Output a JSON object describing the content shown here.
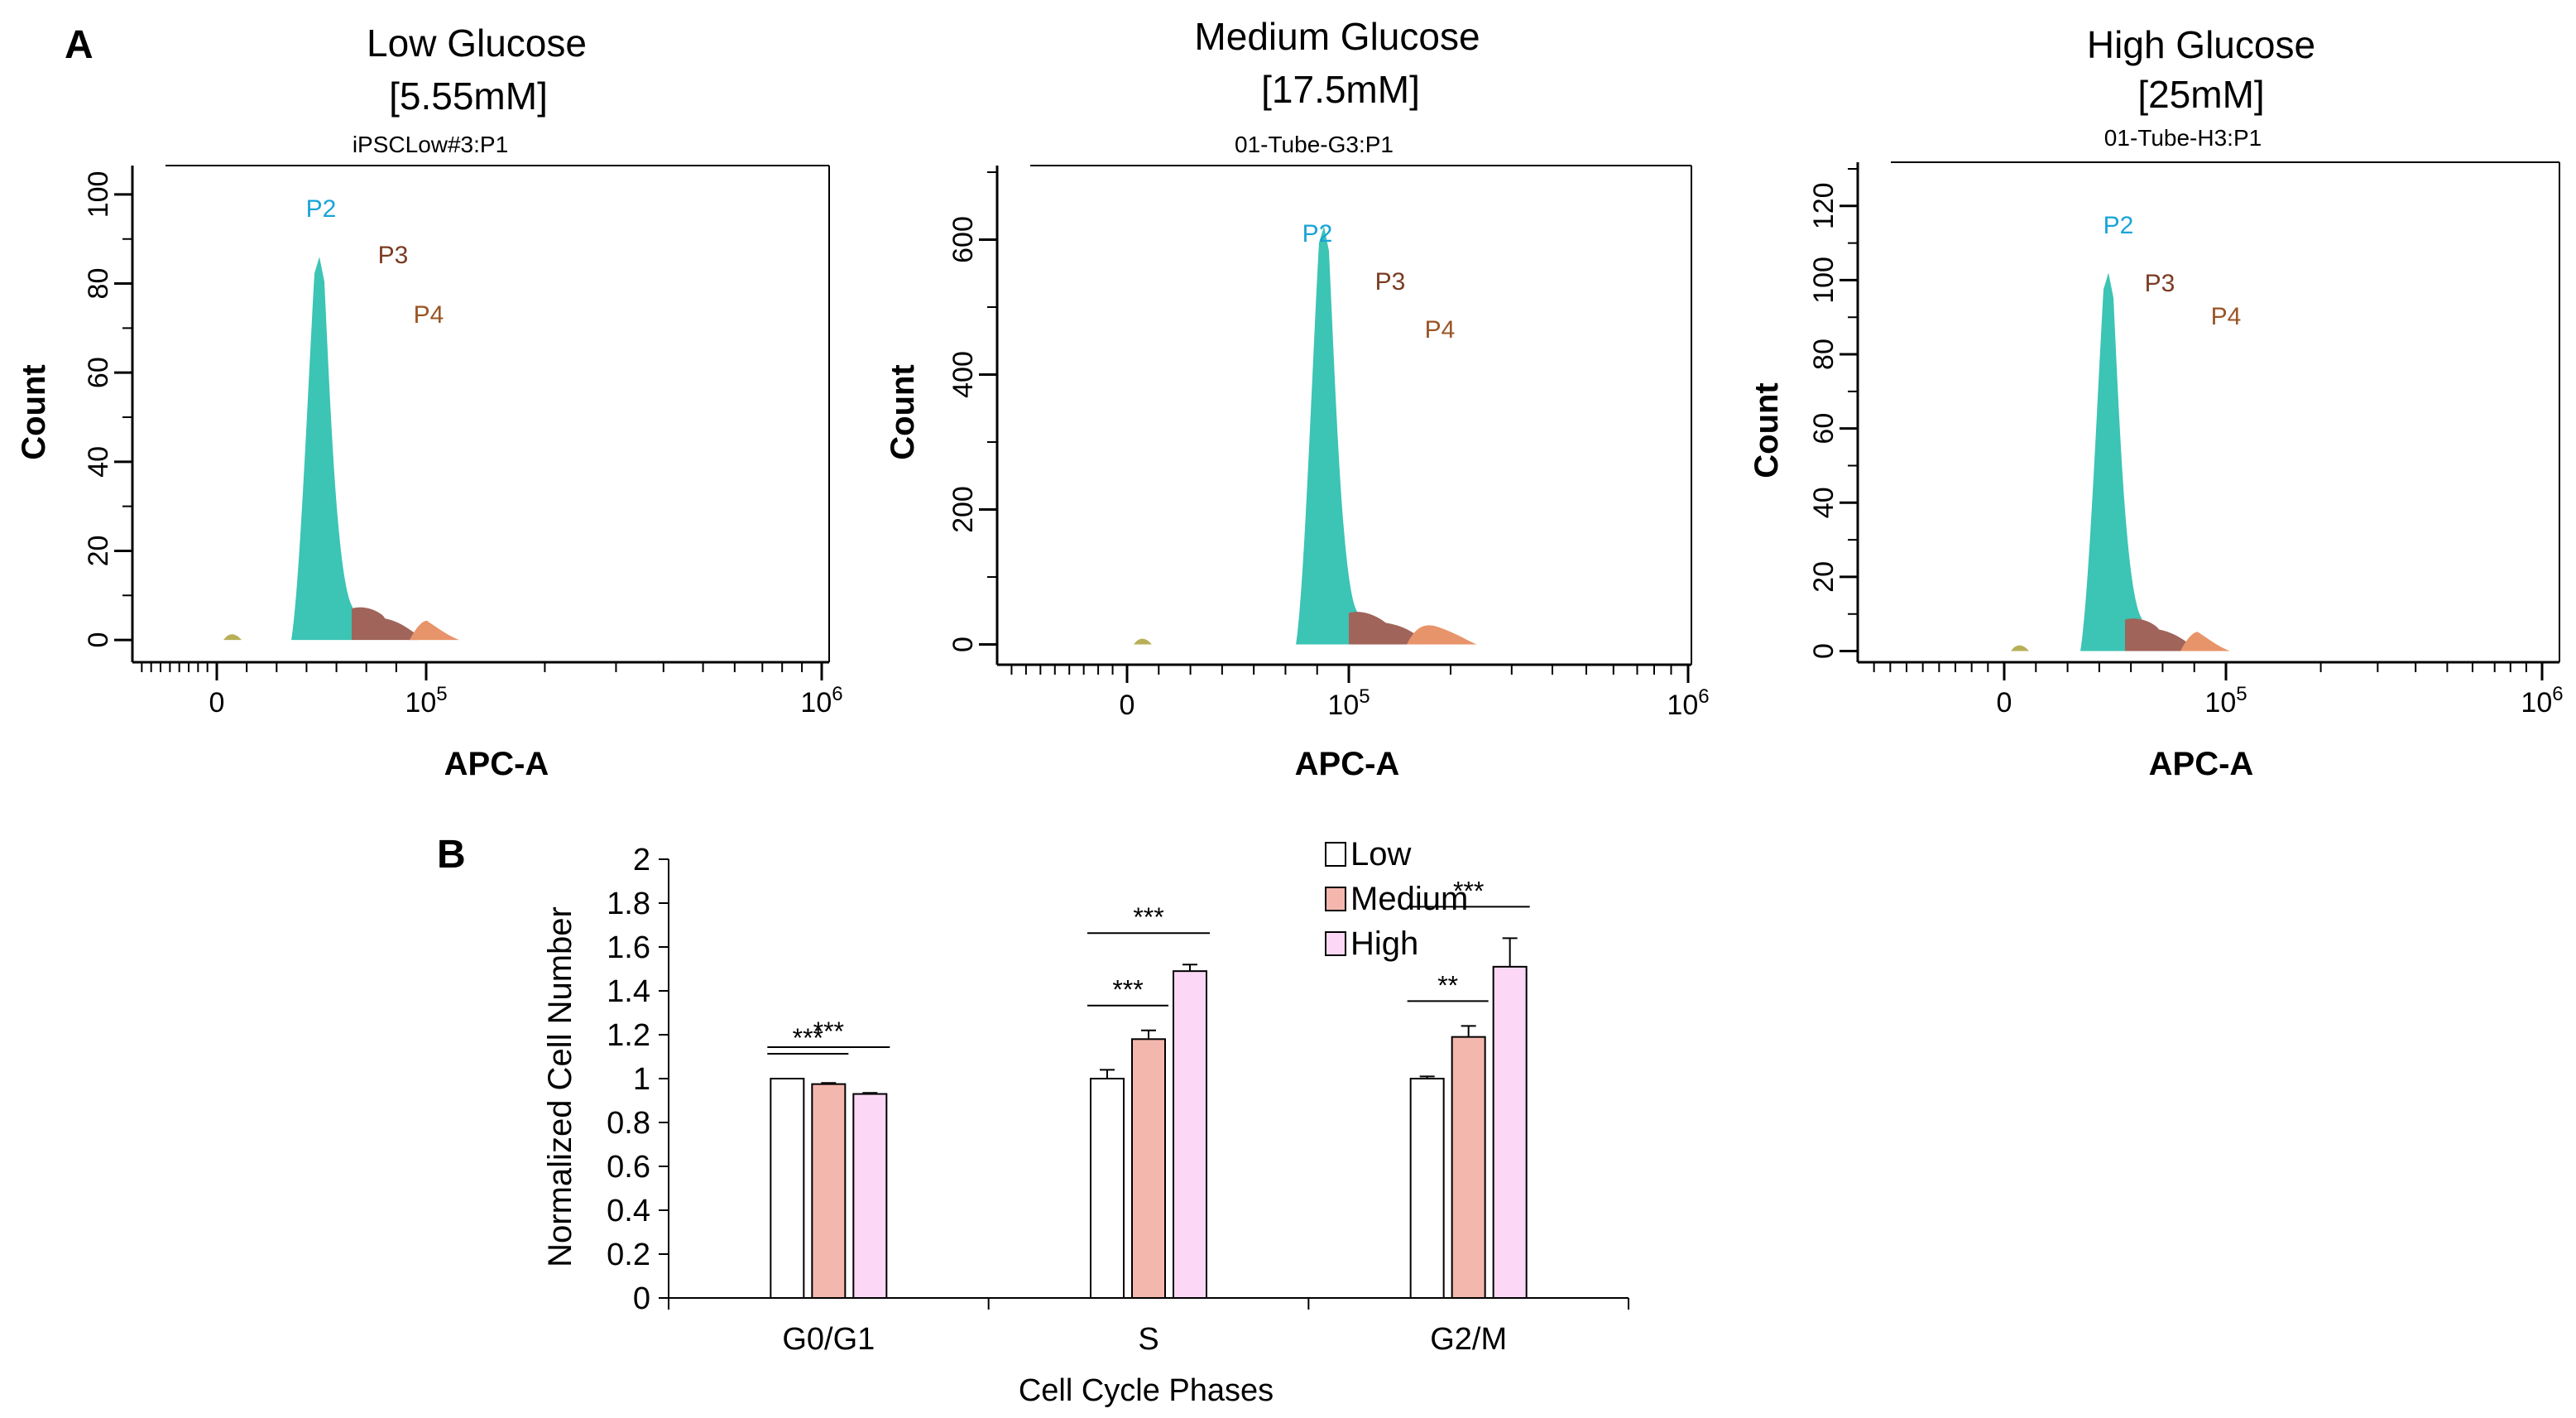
{
  "panel_a": {
    "letter": "A",
    "plots": [
      {
        "title_line1": "Low Glucose",
        "title_line2": "[5.55mM]",
        "subtitle": "iPSCLow#3:P1",
        "ylabel": "Count",
        "xlabel": "APC-A",
        "gates": [
          "P2",
          "P3",
          "P4"
        ]
      },
      {
        "title_line1": "Medium Glucose",
        "title_line2": "[17.5mM]",
        "subtitle": "01-Tube-G3:P1",
        "ylabel": "Count",
        "xlabel": "APC-A",
        "gates": [
          "P2",
          "P3",
          "P4"
        ]
      },
      {
        "title_line1": "High Glucose",
        "title_line2": "[25mM]",
        "subtitle": "01-Tube-H3:P1",
        "ylabel": "Count",
        "xlabel": "APC-A",
        "gates": [
          "P2",
          "P3",
          "P4"
        ]
      }
    ]
  },
  "panel_b": {
    "letter": "B"
  },
  "colors": {
    "p2_fill": "#3cc4b4",
    "p3_fill": "#a0645a",
    "p4_fill": "#e8946a",
    "debris_fill": "#b8b058",
    "p2_text": "#19a4d6",
    "p3_text": "#7a3c22",
    "p4_text": "#9a5424",
    "low_bar": "#ffffff",
    "medium_bar": "#f4b7ae",
    "high_bar": "#fcd8f6"
  },
  "chart_data": [
    {
      "type": "area",
      "title": "Low Glucose [5.55mM]",
      "subtitle": "iPSCLow#3:P1",
      "xlabel": "APC-A",
      "ylabel": "Count",
      "x_scale": "biexponential",
      "x_ticks": [
        {
          "value": 0,
          "label": "0"
        },
        {
          "value": 100000,
          "label": "10",
          "sup": "5"
        },
        {
          "value": 1000000,
          "label": "10",
          "sup": "6"
        }
      ],
      "yticks": [
        0,
        20,
        40,
        60,
        80,
        100
      ],
      "ylim": [
        -5,
        105
      ],
      "peak": {
        "gate": "P2",
        "x": 45000,
        "y": 86
      },
      "gate_labels": [
        "P2",
        "P3",
        "P4"
      ]
    },
    {
      "type": "area",
      "title": "Medium Glucose [17.5mM]",
      "subtitle": "01-Tube-G3:P1",
      "xlabel": "APC-A",
      "ylabel": "Count",
      "x_scale": "biexponential",
      "x_ticks": [
        {
          "value": 0,
          "label": "0"
        },
        {
          "value": 100000,
          "label": "10",
          "sup": "5"
        },
        {
          "value": 1000000,
          "label": "10",
          "sup": "6"
        }
      ],
      "yticks": [
        0,
        200,
        400,
        600
      ],
      "ylim": [
        -30,
        700
      ],
      "peak": {
        "gate": "P2",
        "x": 80000,
        "y": 620
      },
      "gate_labels": [
        "P2",
        "P3",
        "P4"
      ]
    },
    {
      "type": "area",
      "title": "High Glucose [25mM]",
      "subtitle": "01-Tube-H3:P1",
      "xlabel": "APC-A",
      "ylabel": "Count",
      "x_scale": "biexponential",
      "x_ticks": [
        {
          "value": 0,
          "label": "0"
        },
        {
          "value": 100000,
          "label": "10",
          "sup": "5"
        },
        {
          "value": 1000000,
          "label": "10",
          "sup": "6"
        }
      ],
      "yticks": [
        0,
        20,
        40,
        60,
        80,
        100,
        120
      ],
      "ylim": [
        -3,
        130
      ],
      "peak": {
        "gate": "P2",
        "x": 50000,
        "y": 102
      },
      "gate_labels": [
        "P2",
        "P3",
        "P4"
      ]
    },
    {
      "type": "bar",
      "xlabel": "Cell Cycle Phases",
      "ylabel": "Normalized Cell Number",
      "categories": [
        "G0/G1",
        "S",
        "G2/M"
      ],
      "ylim": [
        0,
        2
      ],
      "yticks": [
        "0",
        "0.2",
        "0.4",
        "0.6",
        "0.8",
        "1",
        "1.2",
        "1.4",
        "1.6",
        "1.8",
        "2"
      ],
      "legend_position": "top-right",
      "series": [
        {
          "name": "Low",
          "values": [
            1.0,
            1.0,
            1.0
          ],
          "errors": [
            0.0,
            0.04,
            0.01
          ]
        },
        {
          "name": "Medium",
          "values": [
            0.975,
            1.18,
            1.19
          ],
          "errors": [
            0.005,
            0.04,
            0.05
          ]
        },
        {
          "name": "High",
          "values": [
            0.93,
            1.49,
            1.51
          ],
          "errors": [
            0.005,
            0.03,
            0.13
          ]
        }
      ],
      "significance": [
        {
          "category": "G0/G1",
          "pair": [
            "Low",
            "Medium"
          ],
          "label": "***"
        },
        {
          "category": "G0/G1",
          "pair": [
            "Low",
            "High"
          ],
          "label": "***"
        },
        {
          "category": "S",
          "pair": [
            "Low",
            "Medium"
          ],
          "label": "***"
        },
        {
          "category": "S",
          "pair": [
            "Low",
            "High"
          ],
          "label": "***"
        },
        {
          "category": "G2/M",
          "pair": [
            "Low",
            "Medium"
          ],
          "label": "**"
        },
        {
          "category": "G2/M",
          "pair": [
            "Low",
            "High"
          ],
          "label": "***"
        }
      ]
    }
  ]
}
